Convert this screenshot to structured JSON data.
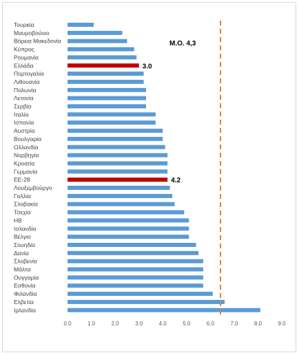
{
  "chart_data": {
    "type": "bar",
    "orientation": "horizontal",
    "categories": [
      "Τουρκία",
      "Μαυροβούνιο",
      "Βόρεια Μακεδονία",
      "Κύπρος",
      "Ρουμανία",
      "Ελλάδα",
      "Πορτογαλία",
      "Λιθουανία",
      "Πολωνία",
      "Λετονία",
      "Σερβία",
      "Ιταλία",
      "Ισπανία",
      "Αυστρία",
      "Βουλγαρία",
      "Ολλανδία",
      "Νορβηγία",
      "Κροατία",
      "Γερμανία",
      "ΕΕ-28",
      "Λουξεμβούργο",
      "Γαλλία",
      "Σλοβακία",
      "Τσεχία",
      "ΗΒ",
      "Ισλανδία",
      "Βέλγιο",
      "Σουηδία",
      "Δανία",
      "Σλοβενία",
      "Μάλτα",
      "Ουγγαρία",
      "Εσθονία",
      "Φιλανδία",
      "Ελβετία",
      "Ιρλανδία"
    ],
    "values": [
      1.1,
      2.3,
      2.5,
      2.8,
      2.9,
      3.0,
      3.2,
      3.2,
      3.3,
      3.3,
      3.3,
      3.7,
      3.7,
      4.0,
      4.0,
      4.1,
      4.2,
      4.2,
      4.2,
      4.2,
      4.3,
      4.4,
      4.5,
      4.9,
      5.1,
      5.1,
      5.1,
      5.4,
      5.5,
      5.7,
      5.7,
      5.7,
      5.7,
      6.1,
      6.6,
      8.1
    ],
    "highlighted": [
      "Ελλάδα",
      "ΕΕ-28"
    ],
    "data_labels": {
      "Ελλάδα": "3.0",
      "ΕΕ-28": "4.2"
    },
    "reference_line": {
      "label": "Μ.Ο. 4,3",
      "style": "dashed",
      "color": "#ED7D31"
    },
    "xlim": [
      0,
      9
    ],
    "xticks": [
      "0.0",
      "1.0",
      "2.0",
      "3.0",
      "4.0",
      "5.0",
      "6.0",
      "7.0",
      "8.0",
      "9.0"
    ],
    "bar_color": "#5B9BD5",
    "highlight_color": "#C00000",
    "grid": false,
    "title": "",
    "xlabel": "",
    "ylabel": ""
  }
}
